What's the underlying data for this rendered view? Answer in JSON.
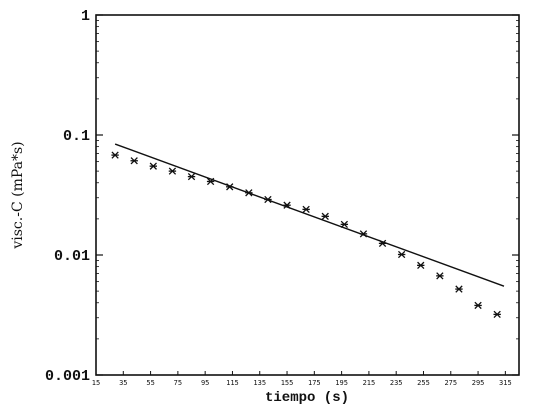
{
  "chart_data": {
    "type": "scatter",
    "xlabel": "tiempo (s)",
    "ylabel": "visc.-C (mPa*s)",
    "xlim": [
      15,
      325
    ],
    "ylim": [
      0.001,
      1
    ],
    "yscale": "log",
    "grid": false,
    "xticks": [
      {
        "value": 15,
        "label": "15"
      },
      {
        "value": 35,
        "label": "35"
      },
      {
        "value": 55,
        "label": "55"
      },
      {
        "value": 75,
        "label": "75"
      },
      {
        "value": 95,
        "label": "95"
      },
      {
        "value": 115,
        "label": "115"
      },
      {
        "value": 135,
        "label": "135"
      },
      {
        "value": 155,
        "label": "155"
      },
      {
        "value": 175,
        "label": "175"
      },
      {
        "value": 195,
        "label": "195"
      },
      {
        "value": 215,
        "label": "215"
      },
      {
        "value": 235,
        "label": "235"
      },
      {
        "value": 255,
        "label": "255"
      },
      {
        "value": 275,
        "label": "275"
      },
      {
        "value": 295,
        "label": "295"
      },
      {
        "value": 315,
        "label": "315"
      }
    ],
    "yticks": [
      {
        "value": 0.001,
        "label": "0.001"
      },
      {
        "value": 0.01,
        "label": "0.01"
      },
      {
        "value": 0.1,
        "label": "0.1"
      },
      {
        "value": 1,
        "label": "1"
      }
    ],
    "series": [
      {
        "marker": "asterisk",
        "x": [
          29,
          43,
          57,
          71,
          85,
          99,
          113,
          127,
          141,
          155,
          169,
          183,
          197,
          211,
          225,
          239,
          253,
          267,
          281,
          295,
          309
        ],
        "y": [
          0.068,
          0.061,
          0.055,
          0.05,
          0.045,
          0.041,
          0.037,
          0.033,
          0.029,
          0.026,
          0.024,
          0.021,
          0.018,
          0.015,
          0.0125,
          0.0101,
          0.0082,
          0.0067,
          0.0052,
          0.0038,
          0.0032
        ]
      }
    ],
    "fit_line": {
      "x": [
        29,
        314
      ],
      "y": [
        0.084,
        0.0055
      ]
    }
  }
}
